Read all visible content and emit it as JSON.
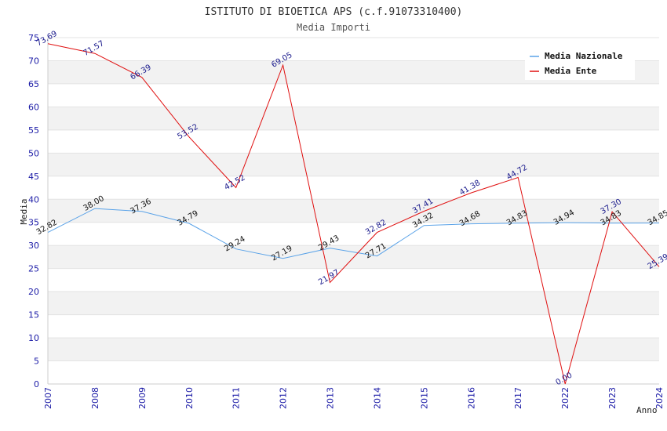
{
  "chart_data": {
    "type": "line",
    "title": "ISTITUTO DI BIOETICA APS (c.f.91073310400)",
    "subtitle": "Media Importi",
    "xlabel": "Anno",
    "ylabel": "Media",
    "ylim": [
      0,
      75
    ],
    "yticks": [
      "0",
      "5",
      "10",
      "15",
      "20",
      "25",
      "30",
      "35",
      "40",
      "45",
      "50",
      "55",
      "60",
      "65",
      "70",
      "75"
    ],
    "categories": [
      "2007",
      "2008",
      "2009",
      "2010",
      "2011",
      "2012",
      "2013",
      "2014",
      "2015",
      "2016",
      "2017",
      "2022",
      "2023",
      "2024"
    ],
    "series": [
      {
        "name": "Media Nazionale",
        "color": "#5ba3e8",
        "values": [
          32.82,
          38.0,
          37.36,
          34.79,
          29.24,
          27.19,
          29.43,
          27.71,
          34.32,
          34.68,
          34.83,
          34.94,
          34.83,
          34.85
        ],
        "labels": [
          "32.82",
          "38.00",
          "37.36",
          "34.79",
          "29.24",
          "27.19",
          "29.43",
          "27.71",
          "34.32",
          "34.68",
          "34.83",
          "34.94",
          "34.83",
          "34.85"
        ]
      },
      {
        "name": "Media Ente",
        "color": "#e01010",
        "values": [
          73.69,
          71.57,
          66.39,
          53.52,
          42.52,
          69.05,
          21.97,
          32.82,
          37.41,
          41.38,
          44.72,
          0.0,
          37.3,
          25.39
        ],
        "labels": [
          "73.69",
          "71.57",
          "66.39",
          "53.52",
          "42.52",
          "69.05",
          "21.97",
          "32.82",
          "37.41",
          "41.38",
          "44.72",
          "0.00",
          "37.30",
          "25.39"
        ]
      }
    ],
    "grid": "alternating horizontal bands",
    "legend_position": "top-right"
  }
}
